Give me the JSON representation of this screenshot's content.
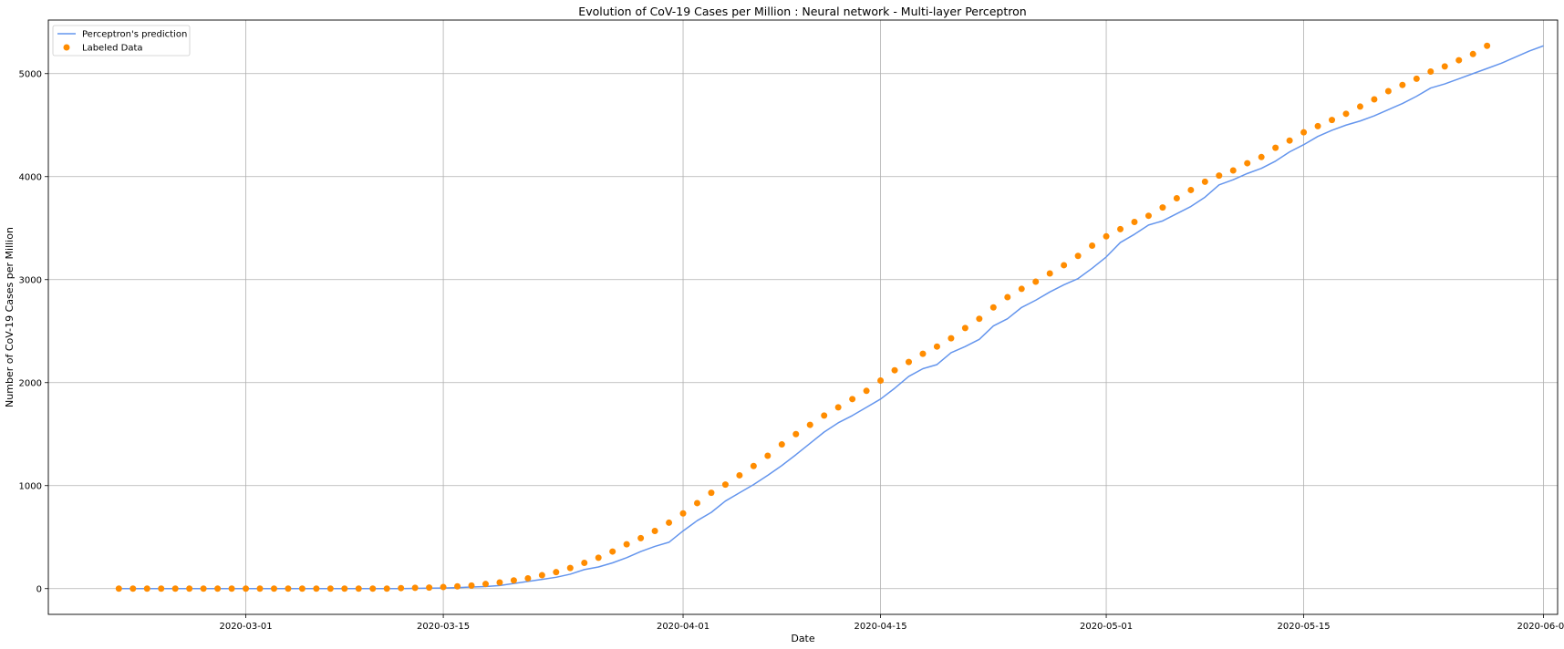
{
  "chart_data": {
    "type": "scatter",
    "title": "Evolution of CoV-19 Cases per Million : Neural network - Multi-layer Perceptron",
    "xlabel": "Date",
    "ylabel": "Number of CoV-19 Cases per Million",
    "x_start": "2020-02-21",
    "xlim": [
      "2020-02-16",
      "2020-06-02"
    ],
    "ylim": [
      -250,
      5520
    ],
    "x_ticks": [
      "2020-03-01",
      "2020-03-15",
      "2020-04-01",
      "2020-04-15",
      "2020-05-01",
      "2020-05-15",
      "2020-06-01"
    ],
    "y_ticks": [
      0,
      1000,
      2000,
      3000,
      4000,
      5000
    ],
    "grid": true,
    "legend": "top-left",
    "series": [
      {
        "name": "Perceptron's prediction",
        "type": "line",
        "color": "#6495ed",
        "values": [
          0,
          0,
          0,
          0,
          0,
          0,
          0,
          0,
          0,
          0,
          0,
          0,
          0,
          0,
          0,
          0,
          0,
          0,
          0,
          0,
          0,
          2,
          4,
          6,
          10,
          15,
          20,
          30,
          50,
          70,
          90,
          110,
          140,
          185,
          210,
          250,
          300,
          360,
          410,
          450,
          560,
          660,
          740,
          850,
          930,
          1010,
          1100,
          1195,
          1300,
          1410,
          1520,
          1610,
          1680,
          1760,
          1840,
          1945,
          2060,
          2135,
          2175,
          2290,
          2350,
          2420,
          2550,
          2620,
          2730,
          2800,
          2880,
          2950,
          3010,
          3110,
          3220,
          3360,
          3440,
          3530,
          3570,
          3640,
          3710,
          3800,
          3920,
          3970,
          4030,
          4080,
          4150,
          4240,
          4310,
          4390,
          4450,
          4500,
          4540,
          4590,
          4650,
          4710,
          4780,
          4860,
          4900,
          4950,
          5000,
          5050,
          5100,
          5160,
          5220,
          5270
        ]
      },
      {
        "name": "Labeled Data",
        "type": "scatter",
        "color": "#ff8c00",
        "values": [
          0,
          0,
          0,
          0,
          0,
          0,
          0,
          0,
          0,
          0,
          0,
          0,
          0,
          0,
          0,
          0,
          0,
          0,
          0,
          0,
          5,
          8,
          10,
          15,
          22,
          30,
          45,
          60,
          80,
          100,
          130,
          160,
          200,
          250,
          300,
          360,
          430,
          490,
          560,
          640,
          730,
          830,
          930,
          1010,
          1100,
          1190,
          1290,
          1400,
          1500,
          1590,
          1680,
          1760,
          1840,
          1920,
          2020,
          2120,
          2200,
          2280,
          2350,
          2430,
          2530,
          2620,
          2730,
          2830,
          2910,
          2980,
          3060,
          3140,
          3230,
          3330,
          3420,
          3490,
          3560,
          3620,
          3700,
          3790,
          3870,
          3950,
          4010,
          4060,
          4130,
          4190,
          4280,
          4350,
          4430,
          4490,
          4550,
          4610,
          4680,
          4750,
          4830,
          4890,
          4950,
          5020,
          5070,
          5130,
          5190,
          5270
        ]
      }
    ]
  }
}
